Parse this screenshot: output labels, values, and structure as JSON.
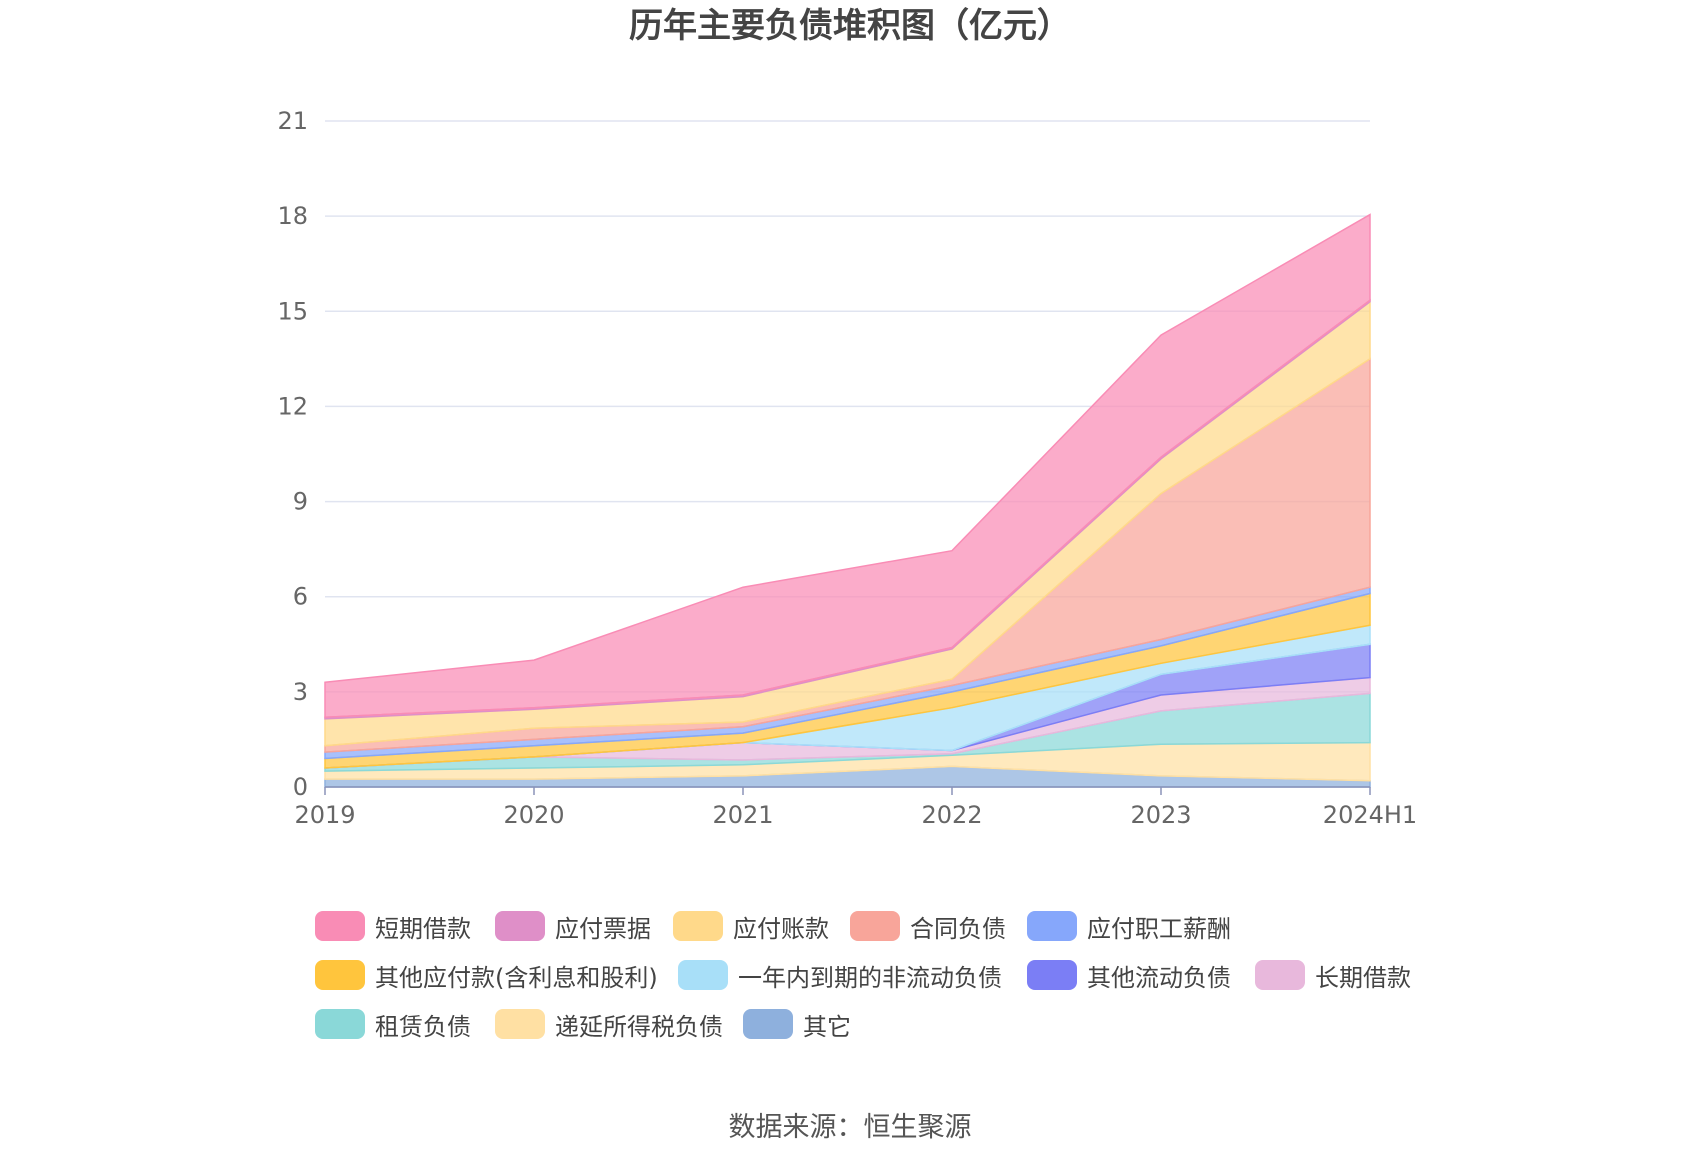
{
  "chart_data": {
    "type": "area",
    "stacked": true,
    "title": "历年主要负债堆积图（亿元）",
    "xlabel": "",
    "ylabel": "",
    "ylim": [
      0,
      21
    ],
    "yticks": [
      0,
      3,
      6,
      9,
      12,
      15,
      18,
      21
    ],
    "grid": true,
    "legend_position": "bottom",
    "categories": [
      "2019",
      "2020",
      "2021",
      "2022",
      "2023",
      "2024H1"
    ],
    "series": [
      {
        "name": "其它",
        "color": "#8eb0dd",
        "values": [
          0.25,
          0.25,
          0.35,
          0.65,
          0.35,
          0.2
        ]
      },
      {
        "name": "递延所得税负债",
        "color": "#ffe0a3",
        "values": [
          0.25,
          0.35,
          0.35,
          0.35,
          1.0,
          1.2
        ]
      },
      {
        "name": "租赁负债",
        "color": "#8ad8d8",
        "values": [
          0.1,
          0.35,
          0.15,
          0.05,
          1.05,
          1.55
        ]
      },
      {
        "name": "长期借款",
        "color": "#e8b8dc",
        "values": [
          0.0,
          0.0,
          0.55,
          0.1,
          0.5,
          0.5
        ]
      },
      {
        "name": "其他流动负债",
        "color": "#7b7ef5",
        "values": [
          0.0,
          0.0,
          0.0,
          0.0,
          0.65,
          1.05
        ]
      },
      {
        "name": "一年内到期的非流动负债",
        "color": "#a8dff8",
        "values": [
          0.0,
          0.0,
          0.0,
          1.35,
          0.35,
          0.6
        ]
      },
      {
        "name": "其他应付款(含利息和股利)",
        "color": "#ffc53d",
        "values": [
          0.3,
          0.35,
          0.3,
          0.5,
          0.55,
          1.0
        ]
      },
      {
        "name": "应付职工薪酬",
        "color": "#86a7fb",
        "values": [
          0.2,
          0.2,
          0.2,
          0.2,
          0.2,
          0.2
        ]
      },
      {
        "name": "合同负债",
        "color": "#f8a59a",
        "values": [
          0.2,
          0.35,
          0.15,
          0.2,
          4.6,
          7.2
        ]
      },
      {
        "name": "应付账款",
        "color": "#ffd98a",
        "values": [
          0.85,
          0.6,
          0.8,
          0.95,
          1.1,
          1.8
        ]
      },
      {
        "name": "应付票据",
        "color": "#df8fc8",
        "values": [
          0.05,
          0.05,
          0.05,
          0.05,
          0.05,
          0.05
        ]
      },
      {
        "name": "短期借款",
        "color": "#f98cb5",
        "values": [
          1.1,
          1.5,
          3.4,
          3.05,
          3.85,
          2.7
        ]
      }
    ],
    "source_note": "数据来源：恒生聚源"
  },
  "legend": [
    {
      "name": "短期借款",
      "color": "#f98cb5"
    },
    {
      "name": "应付票据",
      "color": "#df8fc8"
    },
    {
      "name": "应付账款",
      "color": "#ffd98a"
    },
    {
      "name": "合同负债",
      "color": "#f8a59a"
    },
    {
      "name": "应付职工薪酬",
      "color": "#86a7fb"
    },
    {
      "name": "其他应付款(含利息和股利)",
      "color": "#ffc53d"
    },
    {
      "name": "一年内到期的非流动负债",
      "color": "#a8dff8"
    },
    {
      "name": "其他流动负债",
      "color": "#7b7ef5"
    },
    {
      "name": "长期借款",
      "color": "#e8b8dc"
    },
    {
      "name": "租赁负债",
      "color": "#8ad8d8"
    },
    {
      "name": "递延所得税负债",
      "color": "#ffe0a3"
    },
    {
      "name": "其它",
      "color": "#8eb0dd"
    }
  ]
}
